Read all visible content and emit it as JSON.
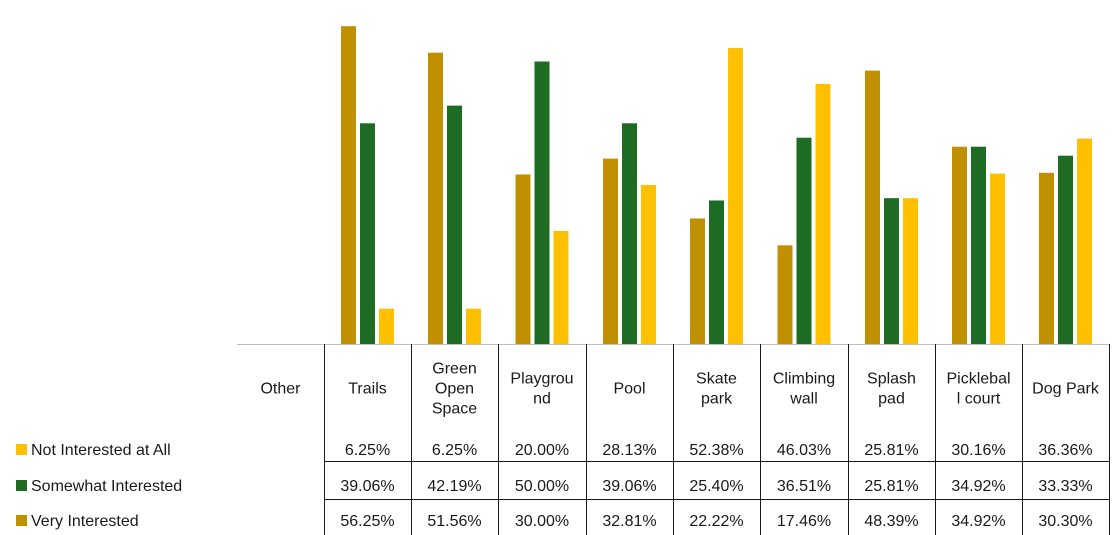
{
  "chart_data": {
    "type": "bar",
    "categories": [
      "Other",
      "Trails",
      "Green Open Space",
      "Playground",
      "Pool",
      "Skate park",
      "Climbing wall",
      "Splash pad",
      "Pickleball court",
      "Dog Park"
    ],
    "category_display_lines": [
      [
        "Other"
      ],
      [
        "Trails"
      ],
      [
        "Green",
        "Open",
        "Space"
      ],
      [
        "Playgrou",
        "nd"
      ],
      [
        "Pool"
      ],
      [
        "Skate",
        "park"
      ],
      [
        "Climbing",
        "wall"
      ],
      [
        "Splash",
        "pad"
      ],
      [
        "Picklebal",
        "l court"
      ],
      [
        "Dog Park"
      ]
    ],
    "series": [
      {
        "name": "Very Interested",
        "color": "#C19000",
        "values": [
          null,
          56.25,
          51.56,
          30.0,
          32.81,
          22.22,
          17.46,
          48.39,
          34.92,
          30.3
        ],
        "labels": [
          "",
          "56.25%",
          "51.56%",
          "30.00%",
          "32.81%",
          "22.22%",
          "17.46%",
          "48.39%",
          "34.92%",
          "30.30%"
        ]
      },
      {
        "name": "Somewhat Interested",
        "color": "#1E6B23",
        "values": [
          null,
          39.06,
          42.19,
          50.0,
          39.06,
          25.4,
          36.51,
          25.81,
          34.92,
          33.33
        ],
        "labels": [
          "",
          "39.06%",
          "42.19%",
          "50.00%",
          "39.06%",
          "25.40%",
          "36.51%",
          "25.81%",
          "34.92%",
          "33.33%"
        ]
      },
      {
        "name": "Not Interested at All",
        "color": "#FFC000",
        "values": [
          null,
          6.25,
          6.25,
          20.0,
          28.13,
          52.38,
          46.03,
          25.81,
          30.16,
          36.36
        ],
        "labels": [
          "",
          "6.25%",
          "6.25%",
          "20.00%",
          "28.13%",
          "52.38%",
          "46.03%",
          "25.81%",
          "30.16%",
          "36.36%"
        ]
      }
    ],
    "table_row_order": [
      "Not Interested at All",
      "Somewhat Interested",
      "Very Interested"
    ],
    "unit": "%",
    "ylim": [
      0,
      60
    ],
    "gridlines": false,
    "legend": "data-table"
  }
}
